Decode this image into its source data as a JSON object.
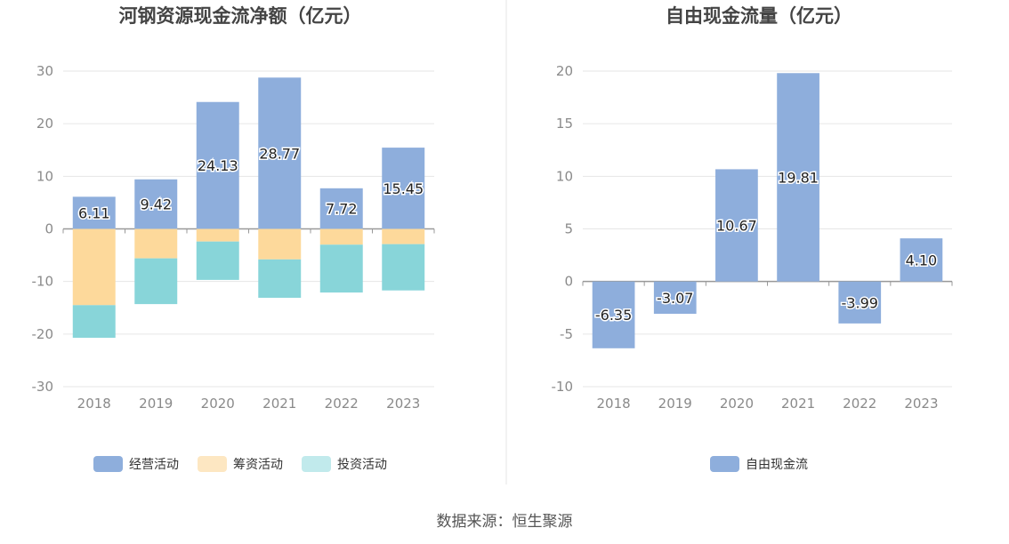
{
  "source_label": "数据来源：恒生聚源",
  "colors": {
    "operating": "#8eaedc",
    "financing": "#fdd99b",
    "investing": "#88d5d9",
    "financing_legend": "#fde7c2",
    "investing_legend": "#c1eaec",
    "free_cash": "#8eaedc",
    "grid": "#e6e6e6",
    "axis": "#999999"
  },
  "chart_data": [
    {
      "type": "bar",
      "stacked": true,
      "title": "河钢资源现金流净额（亿元）",
      "categories": [
        "2018",
        "2019",
        "2020",
        "2021",
        "2022",
        "2023"
      ],
      "ylim": [
        -30,
        30
      ],
      "yticks": [
        30,
        20,
        10,
        0,
        -10,
        -20,
        -30
      ],
      "series": [
        {
          "name": "经营活动",
          "values": [
            6.11,
            9.42,
            24.13,
            28.77,
            7.72,
            15.45
          ],
          "show_labels": true
        },
        {
          "name": "筹资活动",
          "values": [
            -14.5,
            -5.6,
            -2.4,
            -5.8,
            -3.0,
            -2.9
          ],
          "show_labels": false
        },
        {
          "name": "投资活动",
          "values": [
            -6.2,
            -8.7,
            -7.3,
            -7.3,
            -9.1,
            -8.8
          ],
          "show_labels": false
        }
      ],
      "legend": [
        "经营活动",
        "筹资活动",
        "投资活动"
      ]
    },
    {
      "type": "bar",
      "title": "自由现金流量（亿元）",
      "categories": [
        "2018",
        "2019",
        "2020",
        "2021",
        "2022",
        "2023"
      ],
      "ylim": [
        -10,
        20
      ],
      "yticks": [
        20,
        15,
        10,
        5,
        0,
        -5,
        -10
      ],
      "series": [
        {
          "name": "自由现金流",
          "values": [
            -6.35,
            -3.07,
            10.67,
            19.81,
            -3.99,
            4.1
          ],
          "show_labels": true
        }
      ],
      "legend": [
        "自由现金流"
      ]
    }
  ]
}
